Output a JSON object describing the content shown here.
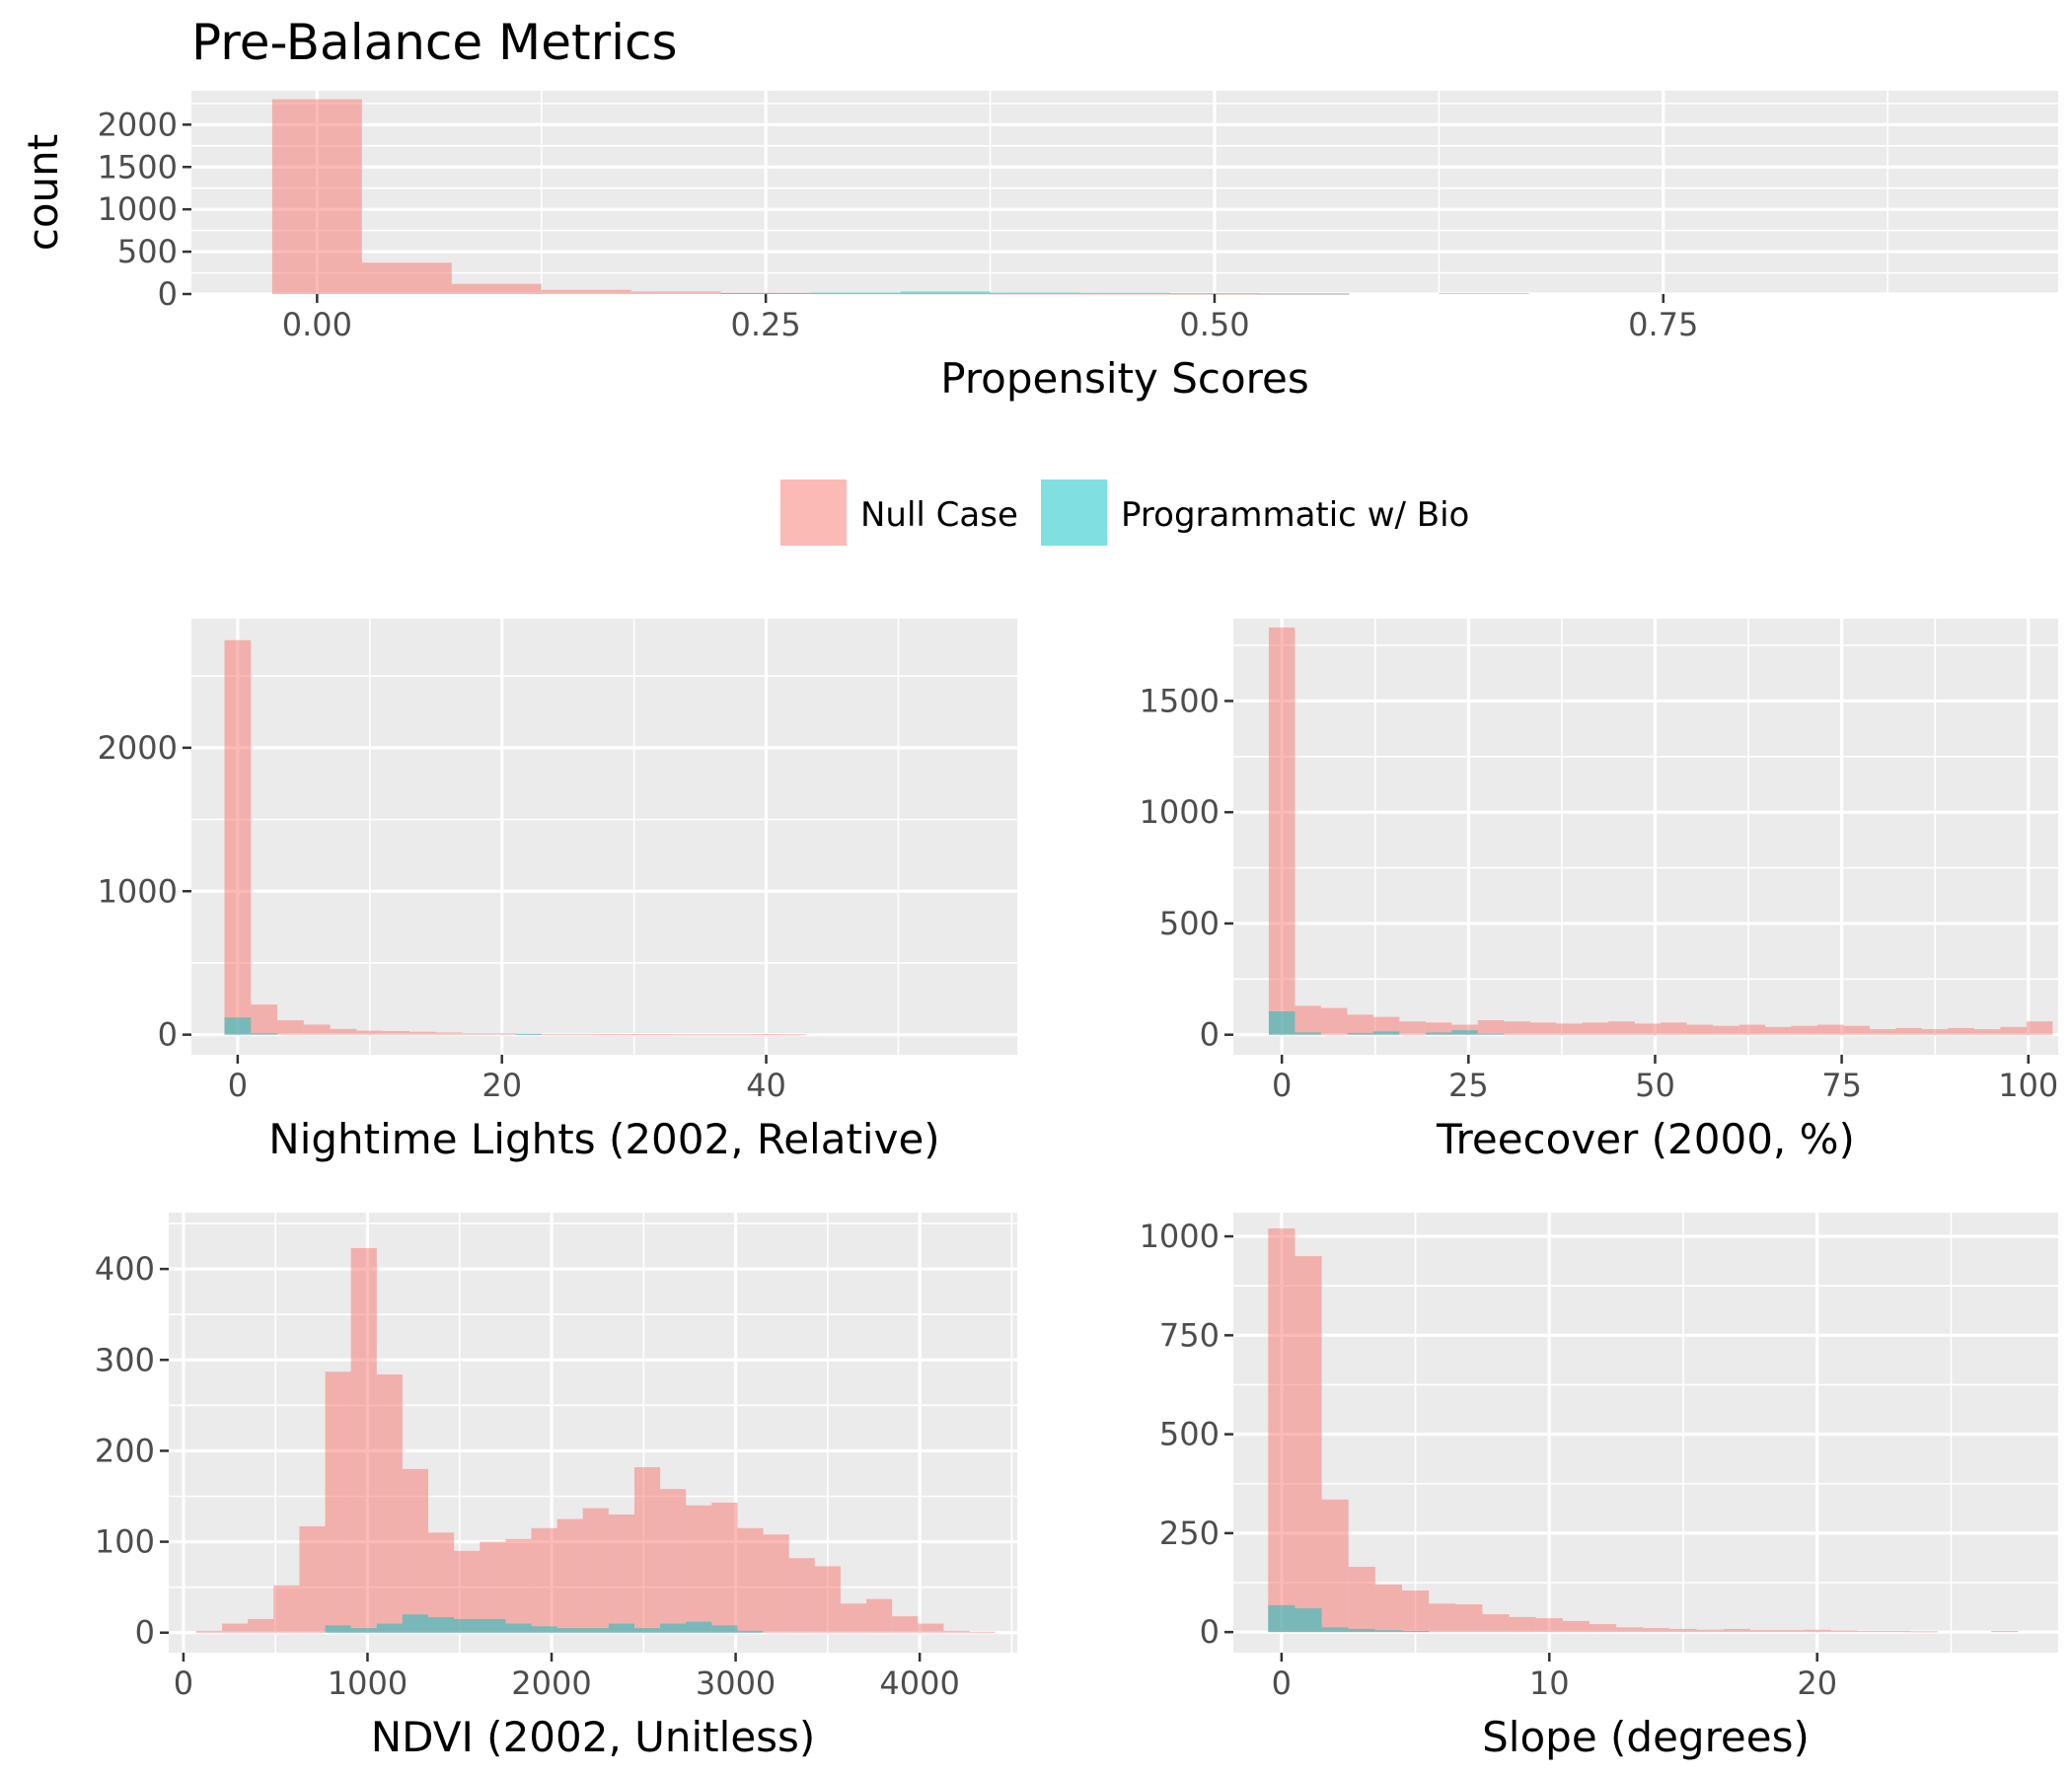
{
  "title": "Pre-Balance Metrics",
  "colors": {
    "null_case": "#F8766D",
    "programmatic": "#00BFC4",
    "panel_bg": "#EBEBEB",
    "grid": "#FFFFFF",
    "tick_text": "#4D4D4D"
  },
  "legend": {
    "items": [
      {
        "label": "Null Case",
        "color": "#F8766D"
      },
      {
        "label": "Programmatic w/ Bio",
        "color": "#00BFC4"
      }
    ],
    "position": "center, between top panel and bottom grid"
  },
  "chart_data": [
    {
      "type": "histogram",
      "id": "propensity",
      "xlabel": "Propensity Scores",
      "ylabel": "count",
      "xlim": [
        -0.07,
        0.97
      ],
      "ylim": [
        0,
        2400
      ],
      "xticks": [
        0,
        0.25,
        0.5,
        0.75
      ],
      "xtick_labels": [
        "0.00",
        "0.25",
        "0.50",
        "0.75"
      ],
      "yticks": [
        0,
        500,
        1000,
        1500,
        2000
      ],
      "ytick_labels": [
        "0",
        "500",
        "1000",
        "1500",
        "2000"
      ],
      "grid": true,
      "series": [
        {
          "name": "Null Case",
          "bins": [
            [
              -0.025,
              0.025,
              2300
            ],
            [
              0.025,
              0.075,
              370
            ],
            [
              0.075,
              0.125,
              120
            ],
            [
              0.125,
              0.175,
              50
            ],
            [
              0.175,
              0.225,
              30
            ],
            [
              0.225,
              0.275,
              15
            ],
            [
              0.275,
              0.325,
              10
            ],
            [
              0.325,
              0.375,
              8
            ],
            [
              0.375,
              0.425,
              6
            ],
            [
              0.425,
              0.475,
              5
            ],
            [
              0.475,
              0.525,
              4
            ],
            [
              0.525,
              0.575,
              3
            ],
            [
              0.625,
              0.675,
              12
            ]
          ]
        },
        {
          "name": "Programmatic w/ Bio",
          "bins": [
            [
              0.225,
              0.275,
              12
            ],
            [
              0.275,
              0.325,
              18
            ],
            [
              0.325,
              0.375,
              30
            ],
            [
              0.375,
              0.425,
              18
            ],
            [
              0.425,
              0.475,
              15
            ],
            [
              0.475,
              0.525,
              10
            ],
            [
              0.525,
              0.575,
              8
            ]
          ]
        }
      ]
    },
    {
      "type": "histogram",
      "id": "nightlights",
      "xlabel": "Nightime Lights (2002, Relative)",
      "xlim": [
        -3.5,
        59
      ],
      "ylim": [
        -140,
        2900
      ],
      "xticks": [
        0,
        20,
        40
      ],
      "xtick_labels": [
        "0",
        "20",
        "40"
      ],
      "yticks": [
        0,
        1000,
        2000
      ],
      "ytick_labels": [
        "0",
        "1000",
        "2000"
      ],
      "grid": true,
      "series": [
        {
          "name": "Null Case",
          "bins": [
            [
              -1,
              1,
              2750
            ],
            [
              1,
              3,
              210
            ],
            [
              3,
              5,
              100
            ],
            [
              5,
              7,
              70
            ],
            [
              7,
              9,
              40
            ],
            [
              9,
              11,
              28
            ],
            [
              11,
              13,
              25
            ],
            [
              13,
              15,
              20
            ],
            [
              15,
              17,
              15
            ],
            [
              17,
              19,
              10
            ],
            [
              19,
              21,
              10
            ],
            [
              21,
              23,
              8
            ],
            [
              23,
              25,
              6
            ],
            [
              25,
              27,
              6
            ],
            [
              27,
              29,
              5
            ],
            [
              29,
              31,
              4
            ],
            [
              31,
              33,
              4
            ],
            [
              33,
              35,
              3
            ],
            [
              35,
              37,
              3
            ],
            [
              37,
              39,
              3
            ],
            [
              39,
              41,
              4
            ],
            [
              41,
              43,
              3
            ]
          ]
        },
        {
          "name": "Programmatic w/ Bio",
          "bins": [
            [
              -1,
              1,
              120
            ],
            [
              1,
              3,
              10
            ],
            [
              21,
              23,
              5
            ]
          ]
        }
      ]
    },
    {
      "type": "histogram",
      "id": "treecover",
      "xlabel": "Treecover (2000, %)",
      "xlim": [
        -6.5,
        104
      ],
      "ylim": [
        -90,
        1870
      ],
      "xticks": [
        0,
        25,
        50,
        75,
        100
      ],
      "xtick_labels": [
        "0",
        "25",
        "50",
        "75",
        "100"
      ],
      "yticks": [
        0,
        500,
        1000,
        1500
      ],
      "ytick_labels": [
        "0",
        "500",
        "1000",
        "1500"
      ],
      "grid": true,
      "series": [
        {
          "name": "Null Case",
          "bins": [
            [
              -1.75,
              1.75,
              1830
            ],
            [
              1.75,
              5.25,
              130
            ],
            [
              5.25,
              8.75,
              120
            ],
            [
              8.75,
              12.25,
              90
            ],
            [
              12.25,
              15.75,
              80
            ],
            [
              15.75,
              19.25,
              60
            ],
            [
              19.25,
              22.75,
              55
            ],
            [
              22.75,
              26.25,
              45
            ],
            [
              26.25,
              29.75,
              65
            ],
            [
              29.75,
              33.25,
              60
            ],
            [
              33.25,
              36.75,
              55
            ],
            [
              36.75,
              40.25,
              50
            ],
            [
              40.25,
              43.75,
              55
            ],
            [
              43.75,
              47.25,
              60
            ],
            [
              47.25,
              50.75,
              50
            ],
            [
              50.75,
              54.25,
              55
            ],
            [
              54.25,
              57.75,
              45
            ],
            [
              57.75,
              61.25,
              40
            ],
            [
              61.25,
              64.75,
              45
            ],
            [
              64.75,
              68.25,
              35
            ],
            [
              68.25,
              71.75,
              40
            ],
            [
              71.75,
              75.25,
              45
            ],
            [
              75.25,
              78.75,
              40
            ],
            [
              78.75,
              82.25,
              25
            ],
            [
              82.25,
              85.75,
              30
            ],
            [
              85.75,
              89.25,
              25
            ],
            [
              89.25,
              92.75,
              30
            ],
            [
              92.75,
              96.25,
              25
            ],
            [
              96.25,
              99.75,
              35
            ],
            [
              99.75,
              103.25,
              60
            ]
          ]
        },
        {
          "name": "Programmatic w/ Bio",
          "bins": [
            [
              -1.75,
              1.75,
              105
            ],
            [
              1.75,
              5.25,
              10
            ],
            [
              8.75,
              12.25,
              8
            ],
            [
              12.25,
              15.75,
              15
            ],
            [
              19.25,
              22.75,
              10
            ],
            [
              22.75,
              26.25,
              20
            ],
            [
              26.25,
              29.75,
              5
            ]
          ]
        }
      ]
    },
    {
      "type": "histogram",
      "id": "ndvi",
      "xlabel": "NDVI (2002, Unitless)",
      "xlim": [
        -80,
        4530
      ],
      "ylim": [
        -22,
        462
      ],
      "xticks": [
        0,
        1000,
        2000,
        3000,
        4000
      ],
      "xtick_labels": [
        "0",
        "1000",
        "2000",
        "3000",
        "4000"
      ],
      "yticks": [
        0,
        100,
        200,
        300,
        400
      ],
      "ytick_labels": [
        "0",
        "100",
        "200",
        "300",
        "400"
      ],
      "grid": true,
      "series": [
        {
          "name": "Null Case",
          "bins": [
            [
              70,
              210,
              2
            ],
            [
              210,
              350,
              10
            ],
            [
              350,
              490,
              15
            ],
            [
              490,
              630,
              52
            ],
            [
              630,
              770,
              117
            ],
            [
              770,
              910,
              287
            ],
            [
              910,
              1050,
              423
            ],
            [
              1050,
              1190,
              284
            ],
            [
              1190,
              1330,
              180
            ],
            [
              1330,
              1470,
              110
            ],
            [
              1470,
              1610,
              90
            ],
            [
              1610,
              1750,
              100
            ],
            [
              1750,
              1890,
              103
            ],
            [
              1890,
              2030,
              115
            ],
            [
              2030,
              2170,
              125
            ],
            [
              2170,
              2310,
              137
            ],
            [
              2310,
              2450,
              130
            ],
            [
              2450,
              2590,
              182
            ],
            [
              2590,
              2730,
              158
            ],
            [
              2730,
              2870,
              140
            ],
            [
              2870,
              3010,
              143
            ],
            [
              3010,
              3150,
              115
            ],
            [
              3150,
              3290,
              108
            ],
            [
              3290,
              3430,
              82
            ],
            [
              3430,
              3570,
              73
            ],
            [
              3570,
              3710,
              32
            ],
            [
              3710,
              3850,
              37
            ],
            [
              3850,
              3990,
              18
            ],
            [
              3990,
              4130,
              10
            ],
            [
              4130,
              4270,
              2
            ],
            [
              4270,
              4410,
              1
            ]
          ]
        },
        {
          "name": "Programmatic w/ Bio",
          "bins": [
            [
              770,
              910,
              8
            ],
            [
              910,
              1050,
              5
            ],
            [
              1050,
              1190,
              10
            ],
            [
              1190,
              1330,
              20
            ],
            [
              1330,
              1470,
              17
            ],
            [
              1470,
              1610,
              15
            ],
            [
              1610,
              1750,
              15
            ],
            [
              1750,
              1890,
              10
            ],
            [
              1890,
              2030,
              7
            ],
            [
              2030,
              2170,
              5
            ],
            [
              2170,
              2310,
              5
            ],
            [
              2310,
              2450,
              10
            ],
            [
              2450,
              2590,
              5
            ],
            [
              2590,
              2730,
              10
            ],
            [
              2730,
              2870,
              12
            ],
            [
              2870,
              3010,
              8
            ],
            [
              3010,
              3150,
              2
            ]
          ]
        }
      ]
    },
    {
      "type": "histogram",
      "id": "slope",
      "xlabel": "Slope (degrees)",
      "xlim": [
        -1.8,
        29
      ],
      "ylim": [
        -52,
        1060
      ],
      "xticks": [
        0,
        10,
        20
      ],
      "xtick_labels": [
        "0",
        "10",
        "20"
      ],
      "yticks": [
        0,
        250,
        500,
        750,
        1000
      ],
      "ytick_labels": [
        "0",
        "250",
        "500",
        "750",
        "1000"
      ],
      "grid": true,
      "series": [
        {
          "name": "Null Case",
          "bins": [
            [
              -0.5,
              0.5,
              1020
            ],
            [
              0.5,
              1.5,
              950
            ],
            [
              1.5,
              2.5,
              335
            ],
            [
              2.5,
              3.5,
              165
            ],
            [
              3.5,
              4.5,
              120
            ],
            [
              4.5,
              5.5,
              105
            ],
            [
              5.5,
              6.5,
              72
            ],
            [
              6.5,
              7.5,
              70
            ],
            [
              7.5,
              8.5,
              45
            ],
            [
              8.5,
              9.5,
              38
            ],
            [
              9.5,
              10.5,
              35
            ],
            [
              10.5,
              11.5,
              28
            ],
            [
              11.5,
              12.5,
              20
            ],
            [
              12.5,
              13.5,
              12
            ],
            [
              13.5,
              14.5,
              10
            ],
            [
              14.5,
              15.5,
              8
            ],
            [
              15.5,
              16.5,
              6
            ],
            [
              16.5,
              17.5,
              8
            ],
            [
              17.5,
              18.5,
              5
            ],
            [
              18.5,
              19.5,
              5
            ],
            [
              19.5,
              20.5,
              6
            ],
            [
              20.5,
              21.5,
              4
            ],
            [
              21.5,
              22.5,
              3
            ],
            [
              22.5,
              23.5,
              3
            ],
            [
              23.5,
              24.5,
              2
            ],
            [
              26.5,
              27.5,
              3
            ]
          ]
        },
        {
          "name": "Programmatic w/ Bio",
          "bins": [
            [
              -0.5,
              0.5,
              68
            ],
            [
              0.5,
              1.5,
              60
            ],
            [
              1.5,
              2.5,
              12
            ],
            [
              2.5,
              3.5,
              8
            ],
            [
              3.5,
              4.5,
              5
            ],
            [
              4.5,
              5.5,
              3
            ]
          ]
        }
      ]
    }
  ]
}
